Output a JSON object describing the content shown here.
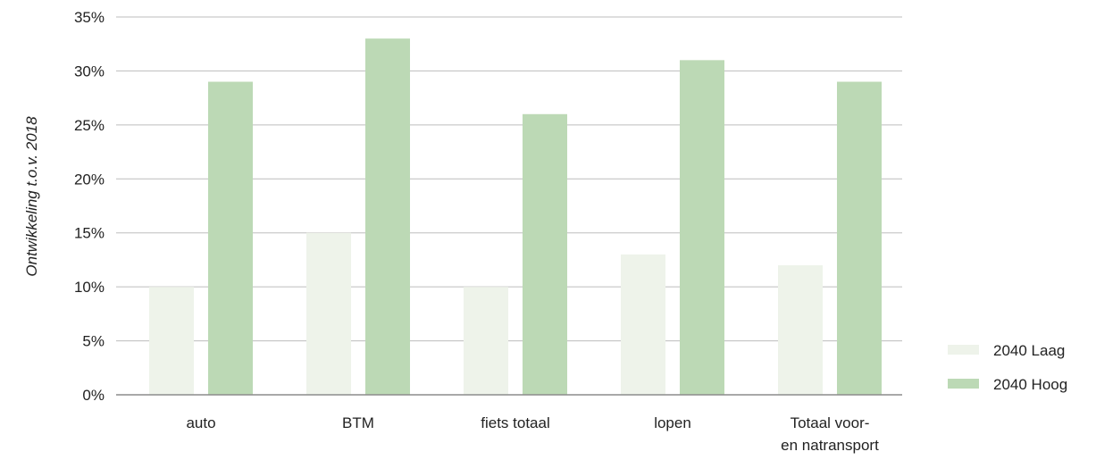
{
  "chart_data": {
    "type": "bar",
    "title": "",
    "xlabel": "",
    "ylabel": "Ontwikkeling t.o.v. 2018",
    "ylim": [
      0,
      35
    ],
    "ytick_values": [
      0,
      5,
      10,
      15,
      20,
      25,
      30,
      35
    ],
    "ytick_labels": [
      "0%",
      "5%",
      "10%",
      "15%",
      "20%",
      "25%",
      "30%",
      "35%"
    ],
    "categories": [
      [
        "auto"
      ],
      [
        "BTM"
      ],
      [
        "fiets totaal"
      ],
      [
        "lopen"
      ],
      [
        "Totaal voor-",
        "en natransport"
      ]
    ],
    "series": [
      {
        "name": "2040 Laag",
        "color": "#eef3ea",
        "values": [
          10,
          15,
          10,
          13,
          12
        ]
      },
      {
        "name": "2040 Hoog",
        "color": "#bcd9b5",
        "values": [
          29,
          33,
          26,
          31,
          29
        ]
      }
    ],
    "grid": true,
    "legend_position": "bottom-right"
  }
}
